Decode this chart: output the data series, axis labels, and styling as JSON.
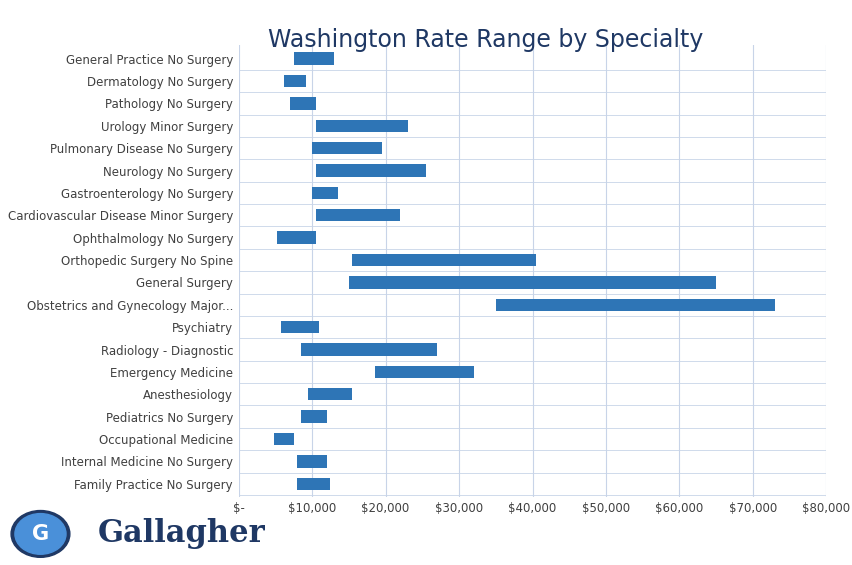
{
  "title": "Washington Rate Range by Specialty",
  "title_fontsize": 17,
  "title_color": "#1f3864",
  "bar_color": "#2e75b6",
  "background_color": "#ffffff",
  "plot_bg_color": "#ffffff",
  "grid_color": "#c8d4e8",
  "xlim": [
    0,
    80000
  ],
  "xtick_labels": [
    "$-",
    "$10,000",
    "$20,000",
    "$30,000",
    "$40,000",
    "$50,000",
    "$60,000",
    "$70,000",
    "$80,000"
  ],
  "xtick_values": [
    0,
    10000,
    20000,
    30000,
    40000,
    50000,
    60000,
    70000,
    80000
  ],
  "specialties": [
    "General Practice No Surgery",
    "Dermatology No Surgery",
    "Pathology No Surgery",
    "Urology Minor Surgery",
    "Pulmonary Disease No Surgery",
    "Neurology No Surgery",
    "Gastroenterology No Surgery",
    "Cardiovascular Disease Minor Surgery",
    "Ophthalmology No Surgery",
    "Orthopedic Surgery No Spine",
    "General Surgery",
    "Obstetrics and Gynecology Major...",
    "Psychiatry",
    "Radiology - Diagnostic",
    "Emergency Medicine",
    "Anesthesiology",
    "Pediatrics No Surgery",
    "Occupational Medicine",
    "Internal Medicine No Surgery",
    "Family Practice No Surgery"
  ],
  "bar_starts": [
    7500,
    6200,
    7000,
    10500,
    10000,
    10500,
    10000,
    10500,
    5200,
    15500,
    15000,
    35000,
    5800,
    8500,
    18500,
    9500,
    8500,
    4800,
    8000,
    8000
  ],
  "bar_ends": [
    13000,
    9200,
    10500,
    23000,
    19500,
    25500,
    13500,
    22000,
    10500,
    40500,
    65000,
    73000,
    11000,
    27000,
    32000,
    15500,
    12000,
    7500,
    12000,
    12500
  ],
  "tick_label_fontsize": 8.5,
  "ylabel_fontsize": 8.5,
  "bar_height": 0.55,
  "gallagher_text_color": "#1f3864",
  "gallagher_fontsize": 22
}
